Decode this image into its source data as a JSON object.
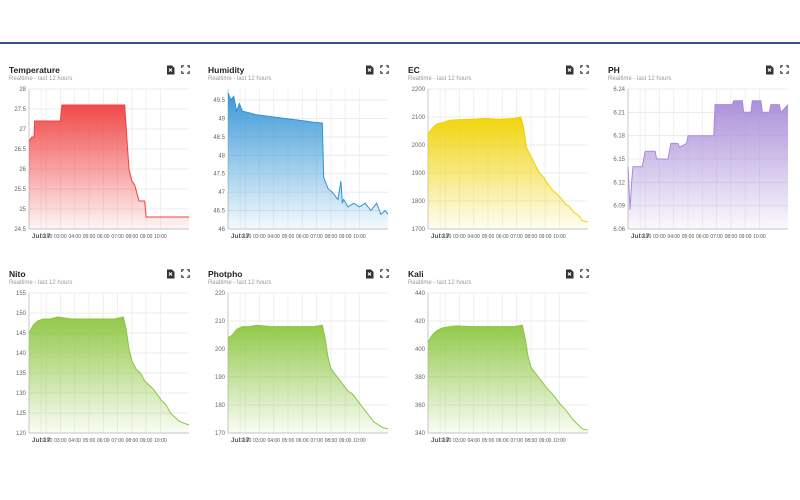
{
  "colors": {
    "red": "#f04040",
    "blue": "#2f93d6",
    "yellow": "#f0d200",
    "purple": "#a78bd8",
    "green": "#8cc63f"
  },
  "icons": {
    "export": "document-export-icon",
    "fullscreen": "expand-icon"
  },
  "panels": [
    {
      "title": "Temperature",
      "subtitle": "Realtime - last 12 hours"
    },
    {
      "title": "Humidity",
      "subtitle": "Realtime - last 12 hours"
    },
    {
      "title": "EC",
      "subtitle": "Realtime - last 12 hours"
    },
    {
      "title": "PH",
      "subtitle": "Realtime - last 12 hours"
    },
    {
      "title": "Nito",
      "subtitle": "Realtime - last 12 hours"
    },
    {
      "title": "Photpho",
      "subtitle": "Realtime - last 12 hours"
    },
    {
      "title": "Kali",
      "subtitle": "Realtime - last 12 hours"
    }
  ],
  "chart_data": [
    {
      "type": "area",
      "title": "Temperature",
      "color": "#f04040",
      "ylim": [
        24.5,
        28
      ],
      "yticks": [
        "24.5",
        "25",
        "25.5",
        "26",
        "26.5",
        "27",
        "27.5",
        "28"
      ],
      "xlim": [
        0,
        11.2
      ],
      "xticks": [
        "Jul 17",
        "02:00",
        "03:00",
        "04:00",
        "05:00",
        "06:00",
        "07:00",
        "08:00",
        "09:00",
        "10:00"
      ],
      "x": [
        0,
        0.2,
        0.35,
        0.4,
        0.5,
        2.2,
        2.3,
        6.7,
        6.9,
        7.0,
        7.2,
        7.4,
        7.7,
        8.1,
        8.2,
        8.6,
        8.8,
        11.2
      ],
      "y": [
        26.7,
        26.8,
        26.8,
        27.2,
        27.2,
        27.2,
        27.6,
        27.6,
        26.5,
        26.0,
        25.7,
        25.6,
        25.2,
        25.2,
        24.8,
        24.8,
        24.8,
        24.8
      ]
    },
    {
      "type": "area",
      "title": "Humidity",
      "color": "#2f93d6",
      "ylim": [
        46,
        49.8
      ],
      "yticks": [
        "46",
        "46.5",
        "47",
        "47.5",
        "48",
        "48.5",
        "49",
        "49.5"
      ],
      "xlim": [
        0,
        11.2
      ],
      "xticks": [
        "Jul 17",
        "02:00",
        "03:00",
        "04:00",
        "05:00",
        "06:00",
        "07:00",
        "08:00",
        "09:00",
        "10:00"
      ],
      "x": [
        0,
        0.2,
        0.4,
        0.6,
        0.8,
        1.0,
        1.5,
        2.0,
        3.0,
        4.0,
        5.0,
        6.0,
        6.6,
        6.7,
        7.0,
        7.3,
        7.7,
        7.9,
        8.0,
        8.1,
        8.4,
        8.8,
        9.2,
        9.6,
        10.0,
        10.4,
        10.7,
        11.0,
        11.2
      ],
      "y": [
        49.7,
        49.5,
        49.6,
        49.2,
        49.4,
        49.2,
        49.15,
        49.1,
        49.05,
        49.0,
        48.95,
        48.9,
        48.88,
        47.4,
        47.1,
        47.0,
        46.8,
        47.3,
        46.7,
        46.8,
        46.6,
        46.7,
        46.6,
        46.7,
        46.5,
        46.7,
        46.4,
        46.5,
        46.4
      ]
    },
    {
      "type": "area",
      "title": "EC",
      "color": "#f0d200",
      "ylim": [
        1700,
        2200
      ],
      "yticks": [
        "1700",
        "1800",
        "1900",
        "2000",
        "2100",
        "2200"
      ],
      "xlim": [
        0,
        11.2
      ],
      "xticks": [
        "Jul 17",
        "02:00",
        "03:00",
        "04:00",
        "05:00",
        "06:00",
        "07:00",
        "08:00",
        "09:00",
        "10:00"
      ],
      "x": [
        0,
        0.3,
        0.6,
        1.0,
        1.5,
        2.0,
        3.0,
        4.0,
        5.0,
        6.0,
        6.5,
        6.7,
        6.9,
        7.2,
        7.5,
        7.8,
        8.1,
        8.4,
        8.7,
        9.0,
        9.3,
        9.6,
        9.9,
        10.2,
        10.5,
        10.8,
        11.2
      ],
      "y": [
        2040,
        2060,
        2075,
        2080,
        2088,
        2090,
        2092,
        2095,
        2092,
        2095,
        2100,
        2060,
        1990,
        1960,
        1930,
        1900,
        1885,
        1860,
        1840,
        1825,
        1810,
        1790,
        1780,
        1760,
        1750,
        1730,
        1725
      ]
    },
    {
      "type": "area",
      "title": "PH",
      "color": "#a78bd8",
      "ylim": [
        6.06,
        6.24
      ],
      "yticks": [
        "6.06",
        "6.09",
        "6.12",
        "6.15",
        "6.18",
        "6.21",
        "6.24"
      ],
      "xlim": [
        0,
        11.2
      ],
      "xticks": [
        "Jul 17",
        "02:00",
        "03:00",
        "04:00",
        "05:00",
        "06:00",
        "07:00",
        "08:00",
        "09:00",
        "10:00"
      ],
      "x": [
        0,
        0.15,
        0.25,
        0.35,
        0.6,
        1.0,
        1.2,
        1.9,
        2.0,
        2.8,
        3.0,
        3.5,
        3.6,
        4.1,
        4.2,
        5.0,
        5.1,
        6.0,
        6.1,
        6.9,
        7.0,
        7.3,
        7.4,
        8.0,
        8.1,
        8.6,
        8.7,
        9.3,
        9.4,
        9.9,
        10.0,
        10.6,
        10.7,
        11.2
      ],
      "y": [
        6.14,
        6.085,
        6.12,
        6.14,
        6.14,
        6.14,
        6.16,
        6.16,
        6.15,
        6.15,
        6.17,
        6.17,
        6.165,
        6.17,
        6.18,
        6.18,
        6.18,
        6.18,
        6.22,
        6.22,
        6.22,
        6.22,
        6.225,
        6.225,
        6.21,
        6.21,
        6.225,
        6.225,
        6.21,
        6.21,
        6.22,
        6.22,
        6.21,
        6.22
      ]
    },
    {
      "type": "area",
      "title": "Nito",
      "color": "#8cc63f",
      "ylim": [
        120,
        155
      ],
      "yticks": [
        "120",
        "125",
        "130",
        "135",
        "140",
        "145",
        "150",
        "155"
      ],
      "xlim": [
        0,
        11.2
      ],
      "xticks": [
        "Jul 17",
        "02:00",
        "03:00",
        "04:00",
        "05:00",
        "06:00",
        "07:00",
        "08:00",
        "09:00",
        "10:00"
      ],
      "x": [
        0,
        0.3,
        0.6,
        1.0,
        1.5,
        2.0,
        3.0,
        4.0,
        5.0,
        6.0,
        6.6,
        6.8,
        7.0,
        7.2,
        7.5,
        7.8,
        8.1,
        8.4,
        8.7,
        9.0,
        9.3,
        9.6,
        9.9,
        10.2,
        10.5,
        10.8,
        11.2
      ],
      "y": [
        145,
        147,
        148,
        148.5,
        148.5,
        149,
        148.5,
        148.5,
        148.5,
        148.5,
        149,
        146,
        141,
        138,
        136,
        135,
        133,
        132,
        131,
        129.5,
        128,
        127,
        125,
        124,
        123,
        122.5,
        122
      ]
    },
    {
      "type": "area",
      "title": "Photpho",
      "color": "#8cc63f",
      "ylim": [
        170,
        220
      ],
      "yticks": [
        "170",
        "180",
        "190",
        "200",
        "210",
        "220"
      ],
      "xlim": [
        0,
        11.2
      ],
      "xticks": [
        "Jul 17",
        "02:00",
        "03:00",
        "04:00",
        "05:00",
        "06:00",
        "07:00",
        "08:00",
        "09:00",
        "10:00"
      ],
      "x": [
        0,
        0.3,
        0.6,
        1.0,
        1.5,
        2.0,
        3.0,
        4.0,
        5.0,
        6.0,
        6.6,
        6.8,
        7.0,
        7.2,
        7.5,
        7.8,
        8.1,
        8.4,
        8.7,
        9.0,
        9.3,
        9.6,
        9.9,
        10.2,
        10.5,
        10.8,
        11.2
      ],
      "y": [
        204,
        205,
        207,
        208,
        208,
        208.5,
        208,
        208,
        208,
        208,
        208.5,
        204,
        197,
        193,
        191,
        189,
        187,
        185,
        184,
        182,
        180,
        178,
        176,
        174,
        173,
        172,
        171.5
      ]
    },
    {
      "type": "area",
      "title": "Kali",
      "color": "#8cc63f",
      "ylim": [
        340,
        440
      ],
      "yticks": [
        "340",
        "360",
        "380",
        "400",
        "420",
        "440"
      ],
      "xlim": [
        0,
        11.2
      ],
      "xticks": [
        "Jul 17",
        "02:00",
        "03:00",
        "04:00",
        "05:00",
        "06:00",
        "07:00",
        "08:00",
        "09:00",
        "10:00"
      ],
      "x": [
        0,
        0.3,
        0.6,
        1.0,
        1.5,
        2.0,
        3.0,
        4.0,
        5.0,
        6.0,
        6.6,
        6.8,
        7.0,
        7.2,
        7.5,
        7.8,
        8.1,
        8.4,
        8.7,
        9.0,
        9.3,
        9.6,
        9.9,
        10.2,
        10.5,
        10.8,
        11.2
      ],
      "y": [
        405,
        410,
        413,
        415,
        416,
        416.5,
        416,
        416,
        416,
        416,
        417,
        408,
        395,
        387,
        383,
        379,
        375,
        371,
        368,
        364,
        360,
        357,
        353,
        349,
        346,
        343,
        342
      ]
    }
  ]
}
